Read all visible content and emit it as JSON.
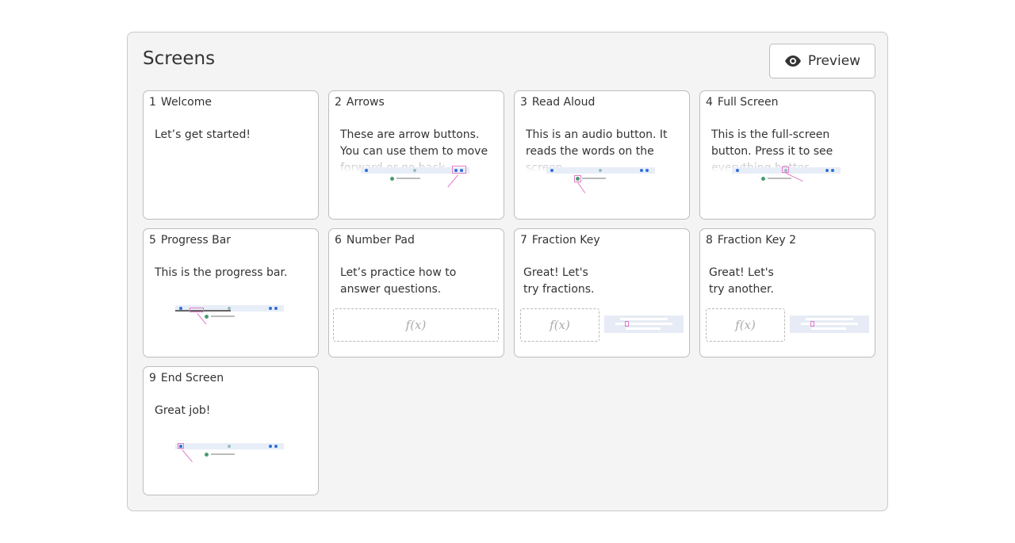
{
  "header": {
    "title": "Screens",
    "preview_label": "Preview",
    "preview_icon": "eye-icon"
  },
  "screens": [
    {
      "num": "1",
      "name": "Welcome",
      "text": "Let’s get started!"
    },
    {
      "num": "2",
      "name": "Arrows",
      "text": "These are arrow buttons. You can use them to move forward or go back."
    },
    {
      "num": "3",
      "name": "Read Aloud",
      "text": "This is an audio button. It reads the words on the screen."
    },
    {
      "num": "4",
      "name": "Full Screen",
      "text": "This is the full-screen button. Press it to see everything better."
    },
    {
      "num": "5",
      "name": "Progress Bar",
      "text": "This is the progress bar."
    },
    {
      "num": "6",
      "name": "Number Pad",
      "text": "Let’s practice how to answer questions.",
      "placeholder": "f(x)"
    },
    {
      "num": "7",
      "name": "Fraction Key",
      "text": "Great! Let's try fractions.",
      "placeholder": "f(x)"
    },
    {
      "num": "8",
      "name": "Fraction Key 2",
      "text": "Great! Let's try another.",
      "placeholder": "f(x)"
    },
    {
      "num": "9",
      "name": "End Screen",
      "text": "Great job!"
    }
  ],
  "colors": {
    "highlight": "#e07bc8",
    "accent": "#2f6fd6"
  }
}
